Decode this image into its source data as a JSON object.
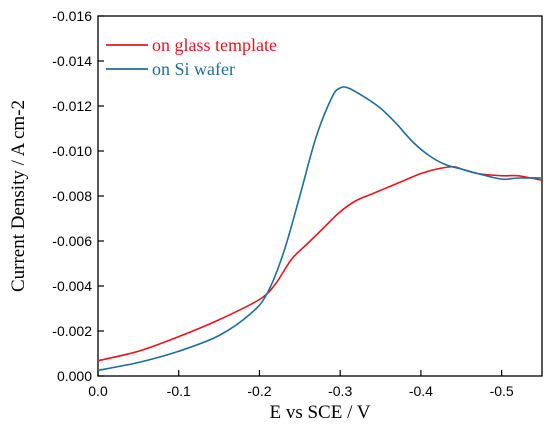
{
  "chart_data": {
    "type": "line",
    "xlabel": "E vs SCE / V",
    "ylabel": "Current Density / A cm-2",
    "xlim": [
      0.0,
      -0.55
    ],
    "ylim": [
      0.0,
      -0.016
    ],
    "x_reversed": true,
    "y_reversed": true,
    "x_ticks": [
      {
        "value": 0.0,
        "label": "0.0"
      },
      {
        "value": -0.1,
        "label": "-0.1"
      },
      {
        "value": -0.2,
        "label": "-0.2"
      },
      {
        "value": -0.3,
        "label": "-0.3"
      },
      {
        "value": -0.4,
        "label": "-0.4"
      },
      {
        "value": -0.5,
        "label": "-0.5"
      }
    ],
    "y_ticks": [
      {
        "value": 0.0,
        "label": "0.000"
      },
      {
        "value": -0.002,
        "label": "-0.002"
      },
      {
        "value": -0.004,
        "label": "-0.004"
      },
      {
        "value": -0.006,
        "label": "-0.006"
      },
      {
        "value": -0.008,
        "label": "-0.008"
      },
      {
        "value": -0.01,
        "label": "-0.010"
      },
      {
        "value": -0.012,
        "label": "-0.012"
      },
      {
        "value": -0.014,
        "label": "-0.014"
      },
      {
        "value": -0.016,
        "label": "-0.016"
      }
    ],
    "grid": false,
    "legend_position": "top-left",
    "series": [
      {
        "name": "on glass template",
        "color": "#e8141b",
        "x": [
          0.0,
          -0.05,
          -0.1,
          -0.15,
          -0.2,
          -0.22,
          -0.24,
          -0.26,
          -0.28,
          -0.3,
          -0.32,
          -0.34,
          -0.36,
          -0.38,
          -0.4,
          -0.42,
          -0.44,
          -0.45,
          -0.47,
          -0.5,
          -0.52,
          -0.55
        ],
        "y": [
          -0.00068,
          -0.0011,
          -0.00175,
          -0.0025,
          -0.0034,
          -0.0041,
          -0.0052,
          -0.0059,
          -0.0066,
          -0.0073,
          -0.0078,
          -0.0081,
          -0.0084,
          -0.0087,
          -0.009,
          -0.0092,
          -0.0093,
          -0.0092,
          -0.009,
          -0.0089,
          -0.0089,
          -0.0087
        ]
      },
      {
        "name": "on Si wafer",
        "color": "#1f6e99",
        "x": [
          0.0,
          -0.05,
          -0.1,
          -0.15,
          -0.19,
          -0.21,
          -0.23,
          -0.25,
          -0.27,
          -0.29,
          -0.3,
          -0.31,
          -0.33,
          -0.35,
          -0.37,
          -0.39,
          -0.41,
          -0.43,
          -0.45,
          -0.47,
          -0.5,
          -0.52,
          -0.55
        ],
        "y": [
          -0.00025,
          -0.0006,
          -0.0011,
          -0.0018,
          -0.0028,
          -0.0037,
          -0.0055,
          -0.008,
          -0.0106,
          -0.0124,
          -0.0128,
          -0.0128,
          -0.0124,
          -0.0119,
          -0.0112,
          -0.0104,
          -0.0098,
          -0.0094,
          -0.0092,
          -0.009,
          -0.00875,
          -0.0088,
          -0.0088
        ]
      }
    ]
  }
}
